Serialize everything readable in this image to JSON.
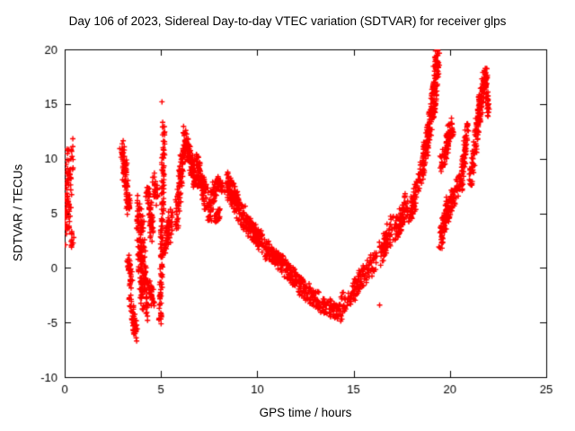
{
  "chart_data": {
    "type": "scatter",
    "title": "Day 106 of 2023, Sidereal Day-to-day VTEC variation (SDTVAR) for receiver glps",
    "xlabel": "GPS time / hours",
    "ylabel": "SDTVAR / TECUs",
    "xlim": [
      0,
      25
    ],
    "ylim": [
      -10,
      20
    ],
    "xticks": [
      0,
      5,
      10,
      15,
      20,
      25
    ],
    "yticks": [
      -10,
      -5,
      0,
      5,
      10,
      15,
      20
    ],
    "grid": false,
    "legend": "none",
    "marker": "plus",
    "marker_color": "#ff0000",
    "border_color": "#000000",
    "background_color": "#ffffff",
    "series_name": "SDTVAR",
    "segments_format": "x0,y0,x1,y1,count,xjitter,yjitter (dense scatter streaks approximated as jittered line segments in data units)",
    "segments": [
      [
        0.05,
        4.0,
        0.3,
        10.0,
        90,
        0.18,
        2.2
      ],
      [
        0.35,
        2.3,
        0.45,
        3.0,
        12,
        0.08,
        0.6
      ],
      [
        2.95,
        11.3,
        3.15,
        9.0,
        40,
        0.1,
        0.6
      ],
      [
        3.1,
        9.0,
        3.35,
        4.8,
        60,
        0.1,
        0.9
      ],
      [
        3.3,
        0.8,
        3.5,
        -1.5,
        35,
        0.1,
        0.7
      ],
      [
        3.45,
        -3.0,
        3.7,
        -6.2,
        55,
        0.12,
        0.6
      ],
      [
        3.8,
        6.0,
        4.0,
        -3.5,
        95,
        0.1,
        1.0
      ],
      [
        4.0,
        5.0,
        4.25,
        -4.2,
        85,
        0.1,
        1.0
      ],
      [
        4.3,
        7.5,
        4.55,
        3.0,
        60,
        0.1,
        1.0
      ],
      [
        4.4,
        -1.5,
        4.6,
        -3.5,
        30,
        0.1,
        0.6
      ],
      [
        4.6,
        8.0,
        4.8,
        6.0,
        30,
        0.1,
        0.8
      ],
      [
        4.95,
        -5.3,
        5.05,
        2.0,
        50,
        0.07,
        0.5
      ],
      [
        5.03,
        2.0,
        5.15,
        13.2,
        75,
        0.07,
        0.6
      ],
      [
        5.25,
        2.2,
        5.55,
        4.8,
        55,
        0.12,
        1.0
      ],
      [
        5.8,
        4.5,
        6.25,
        12.3,
        110,
        0.1,
        1.2
      ],
      [
        6.3,
        11.5,
        6.8,
        8.0,
        90,
        0.1,
        1.0
      ],
      [
        6.8,
        9.5,
        7.4,
        6.0,
        90,
        0.1,
        1.3
      ],
      [
        7.5,
        5.0,
        7.9,
        7.8,
        55,
        0.1,
        1.0
      ],
      [
        7.95,
        8.0,
        8.15,
        7.2,
        25,
        0.08,
        0.5
      ],
      [
        7.8,
        4.3,
        8.0,
        5.0,
        18,
        0.08,
        0.5
      ],
      [
        8.4,
        7.8,
        9.3,
        4.5,
        130,
        0.1,
        1.1
      ],
      [
        9.4,
        4.2,
        10.3,
        2.2,
        110,
        0.1,
        0.9
      ],
      [
        10.4,
        1.8,
        11.3,
        0.3,
        90,
        0.1,
        0.8
      ],
      [
        11.3,
        0.3,
        12.3,
        -1.8,
        90,
        0.1,
        0.8
      ],
      [
        12.3,
        -1.8,
        13.3,
        -3.2,
        80,
        0.1,
        0.8
      ],
      [
        13.3,
        -3.2,
        14.3,
        -4.2,
        70,
        0.1,
        0.8
      ],
      [
        14.3,
        -3.5,
        15.2,
        -1.8,
        55,
        0.1,
        1.0
      ],
      [
        15.2,
        -1.5,
        16.2,
        0.8,
        70,
        0.1,
        1.0
      ],
      [
        16.4,
        1.2,
        17.0,
        3.8,
        70,
        0.1,
        1.2
      ],
      [
        17.1,
        3.2,
        17.8,
        5.8,
        80,
        0.1,
        1.2
      ],
      [
        17.9,
        5.0,
        18.45,
        8.0,
        60,
        0.1,
        1.0
      ],
      [
        18.5,
        8.5,
        19.05,
        14.0,
        120,
        0.1,
        1.0
      ],
      [
        19.1,
        14.0,
        19.35,
        19.8,
        115,
        0.13,
        0.8
      ],
      [
        19.55,
        9.5,
        20.1,
        13.0,
        90,
        0.1,
        0.8
      ],
      [
        19.5,
        2.5,
        19.95,
        6.0,
        90,
        0.1,
        1.0
      ],
      [
        20.0,
        5.5,
        20.45,
        8.0,
        60,
        0.1,
        0.9
      ],
      [
        20.55,
        7.0,
        20.9,
        12.8,
        70,
        0.08,
        0.8
      ],
      [
        21.05,
        8.0,
        21.45,
        13.0,
        60,
        0.09,
        0.9
      ],
      [
        21.4,
        13.0,
        21.85,
        17.8,
        100,
        0.1,
        0.9
      ],
      [
        21.85,
        17.5,
        22.0,
        14.5,
        40,
        0.08,
        0.8
      ]
    ],
    "isolated_points": [
      [
        5.05,
        15.2
      ],
      [
        16.35,
        -3.4
      ]
    ]
  }
}
